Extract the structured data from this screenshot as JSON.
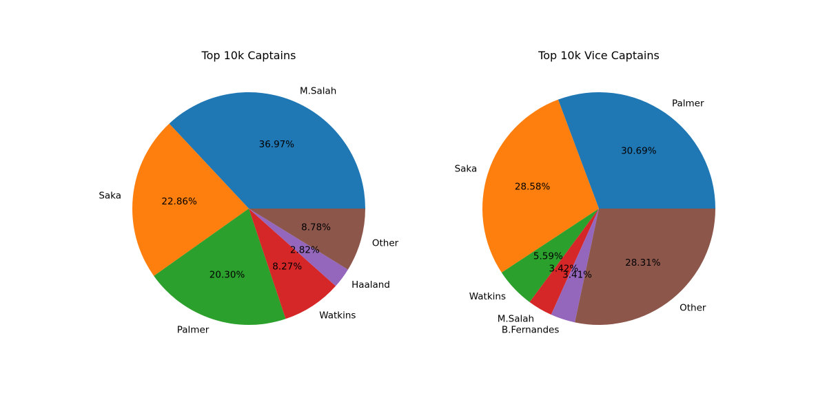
{
  "chart_data": [
    {
      "type": "pie",
      "title": "Top 10k Captains",
      "categories": [
        "M.Salah",
        "Saka",
        "Palmer",
        "Watkins",
        "Haaland",
        "Other"
      ],
      "values": [
        36.97,
        22.86,
        20.3,
        8.27,
        2.82,
        8.78
      ],
      "value_labels": [
        "36.97%",
        "22.86%",
        "20.30%",
        "8.27%",
        "2.82%",
        "8.78%"
      ],
      "colors": [
        "#1f77b4",
        "#ff7f0e",
        "#2ca02c",
        "#d62728",
        "#9467bd",
        "#8c564b"
      ],
      "start_angle_deg": 0,
      "direction": "counterclockwise"
    },
    {
      "type": "pie",
      "title": "Top 10k Vice Captains",
      "categories": [
        "Palmer",
        "Saka",
        "Watkins",
        "M.Salah",
        "B.Fernandes",
        "Other"
      ],
      "values": [
        30.69,
        28.58,
        5.59,
        3.42,
        3.41,
        28.31
      ],
      "value_labels": [
        "30.69%",
        "28.58%",
        "5.59%",
        "3.42%",
        "3.41%",
        "28.31%"
      ],
      "colors": [
        "#1f77b4",
        "#ff7f0e",
        "#2ca02c",
        "#d62728",
        "#9467bd",
        "#8c564b"
      ],
      "start_angle_deg": 0,
      "direction": "counterclockwise"
    }
  ]
}
